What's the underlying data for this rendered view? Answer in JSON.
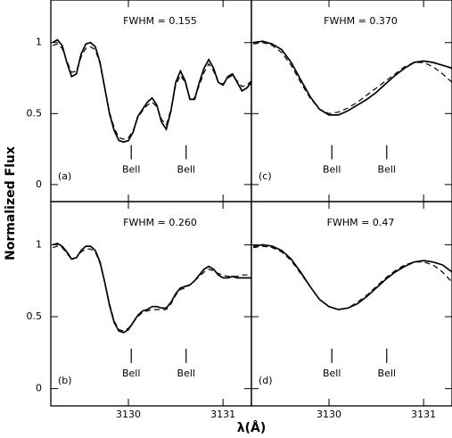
{
  "chart_data": [
    {
      "type": "line",
      "title": "FWHM = 0.155",
      "panel": "(a)",
      "x": [
        3129.2,
        3129.25,
        3129.3,
        3129.35,
        3129.4,
        3129.45,
        3129.5,
        3129.55,
        3129.6,
        3129.65,
        3129.7,
        3129.75,
        3129.8,
        3129.85,
        3129.9,
        3129.95,
        3130,
        3130.05,
        3130.1,
        3130.15,
        3130.2,
        3130.25,
        3130.3,
        3130.35,
        3130.4,
        3130.45,
        3130.5,
        3130.55,
        3130.6,
        3130.65,
        3130.7,
        3130.75,
        3130.8,
        3130.85,
        3130.9,
        3130.95,
        3131,
        3131.05,
        3131.1,
        3131.15,
        3131.2,
        3131.25,
        3131.3
      ],
      "series": [
        {
          "color": "#000000",
          "style": "solid",
          "values": [
            1.0,
            1.02,
            0.98,
            0.86,
            0.76,
            0.78,
            0.92,
            0.99,
            1.0,
            0.97,
            0.86,
            0.68,
            0.5,
            0.38,
            0.31,
            0.3,
            0.31,
            0.37,
            0.48,
            0.53,
            0.58,
            0.61,
            0.56,
            0.44,
            0.39,
            0.52,
            0.72,
            0.8,
            0.73,
            0.6,
            0.6,
            0.72,
            0.82,
            0.88,
            0.82,
            0.72,
            0.7,
            0.76,
            0.78,
            0.72,
            0.66,
            0.68,
            0.72
          ]
        },
        {
          "color": "#000000",
          "style": "dashed",
          "values": [
            0.98,
            0.99,
            0.96,
            0.87,
            0.79,
            0.8,
            0.9,
            0.96,
            0.97,
            0.95,
            0.85,
            0.68,
            0.51,
            0.4,
            0.33,
            0.32,
            0.33,
            0.38,
            0.47,
            0.52,
            0.56,
            0.58,
            0.55,
            0.46,
            0.42,
            0.53,
            0.7,
            0.77,
            0.72,
            0.61,
            0.61,
            0.7,
            0.79,
            0.85,
            0.8,
            0.72,
            0.71,
            0.75,
            0.77,
            0.73,
            0.69,
            0.7,
            0.73
          ]
        }
      ],
      "markers": [
        {
          "x": 3130.03,
          "label": "Bell"
        },
        {
          "x": 3130.61,
          "label": "Bell"
        }
      ],
      "xlim": [
        3129.18,
        3131.3
      ],
      "ylim": [
        -0.12,
        1.3
      ],
      "xticks": [
        3130,
        3131
      ],
      "yticks": [
        0,
        0.5,
        1
      ],
      "ylabel": "Normalized Flux"
    },
    {
      "type": "line",
      "title": "FWHM = 0.260",
      "panel": "(b)",
      "x": [
        3129.2,
        3129.25,
        3129.3,
        3129.35,
        3129.4,
        3129.45,
        3129.5,
        3129.55,
        3129.6,
        3129.65,
        3129.7,
        3129.75,
        3129.8,
        3129.85,
        3129.9,
        3129.95,
        3130,
        3130.05,
        3130.1,
        3130.15,
        3130.2,
        3130.25,
        3130.3,
        3130.35,
        3130.4,
        3130.45,
        3130.5,
        3130.55,
        3130.6,
        3130.65,
        3130.7,
        3130.75,
        3130.8,
        3130.85,
        3130.9,
        3130.95,
        3131,
        3131.05,
        3131.1,
        3131.15,
        3131.2,
        3131.25,
        3131.3
      ],
      "series": [
        {
          "color": "#000000",
          "style": "solid",
          "values": [
            1.0,
            1.01,
            0.99,
            0.95,
            0.9,
            0.91,
            0.96,
            0.99,
            0.99,
            0.96,
            0.88,
            0.74,
            0.58,
            0.46,
            0.4,
            0.39,
            0.41,
            0.46,
            0.51,
            0.54,
            0.55,
            0.57,
            0.57,
            0.56,
            0.56,
            0.6,
            0.66,
            0.7,
            0.71,
            0.72,
            0.75,
            0.79,
            0.83,
            0.85,
            0.83,
            0.79,
            0.77,
            0.77,
            0.78,
            0.77,
            0.77,
            0.77,
            0.77
          ]
        },
        {
          "color": "#000000",
          "style": "dashed",
          "values": [
            0.98,
            0.99,
            0.98,
            0.94,
            0.9,
            0.91,
            0.95,
            0.97,
            0.97,
            0.95,
            0.87,
            0.74,
            0.59,
            0.47,
            0.41,
            0.4,
            0.42,
            0.46,
            0.5,
            0.53,
            0.54,
            0.55,
            0.55,
            0.55,
            0.55,
            0.59,
            0.65,
            0.69,
            0.7,
            0.72,
            0.75,
            0.78,
            0.81,
            0.83,
            0.82,
            0.8,
            0.79,
            0.78,
            0.78,
            0.78,
            0.79,
            0.79,
            0.79
          ]
        }
      ],
      "markers": [
        {
          "x": 3130.03,
          "label": "Bell"
        },
        {
          "x": 3130.61,
          "label": "Bell"
        }
      ],
      "xlim": [
        3129.18,
        3131.3
      ],
      "ylim": [
        -0.12,
        1.3
      ],
      "xticks": [
        3130,
        3131
      ],
      "yticks": [
        0,
        0.5,
        1
      ],
      "xlabel": "λ(Å)"
    },
    {
      "type": "line",
      "title": "FWHM = 0.370",
      "panel": "(c)",
      "x": [
        3129.2,
        3129.3,
        3129.4,
        3129.5,
        3129.6,
        3129.7,
        3129.8,
        3129.9,
        3130,
        3130.1,
        3130.2,
        3130.3,
        3130.4,
        3130.5,
        3130.6,
        3130.7,
        3130.8,
        3130.9,
        3131,
        3131.1,
        3131.2,
        3131.3
      ],
      "series": [
        {
          "color": "#000000",
          "style": "solid",
          "values": [
            1.0,
            1.01,
            0.99,
            0.95,
            0.86,
            0.74,
            0.62,
            0.53,
            0.49,
            0.49,
            0.52,
            0.56,
            0.6,
            0.65,
            0.71,
            0.77,
            0.82,
            0.86,
            0.87,
            0.86,
            0.84,
            0.82
          ]
        },
        {
          "color": "#000000",
          "style": "dashed",
          "values": [
            0.99,
            1.0,
            0.98,
            0.93,
            0.84,
            0.72,
            0.61,
            0.53,
            0.5,
            0.51,
            0.54,
            0.58,
            0.63,
            0.68,
            0.73,
            0.78,
            0.83,
            0.86,
            0.86,
            0.83,
            0.78,
            0.72
          ]
        }
      ],
      "markers": [
        {
          "x": 3130.03,
          "label": "Bell"
        },
        {
          "x": 3130.61,
          "label": "Bell"
        }
      ],
      "xlim": [
        3129.18,
        3131.3
      ],
      "ylim": [
        -0.12,
        1.3
      ],
      "xticks": [
        3130,
        3131
      ],
      "yticks": [
        0,
        0.5,
        1
      ]
    },
    {
      "type": "line",
      "title": "FWHM = 0.47",
      "panel": "(d)",
      "x": [
        3129.2,
        3129.3,
        3129.4,
        3129.5,
        3129.6,
        3129.7,
        3129.8,
        3129.9,
        3130,
        3130.1,
        3130.2,
        3130.3,
        3130.4,
        3130.5,
        3130.6,
        3130.7,
        3130.8,
        3130.9,
        3131,
        3131.1,
        3131.2,
        3131.3
      ],
      "series": [
        {
          "color": "#000000",
          "style": "solid",
          "values": [
            0.99,
            1.0,
            0.99,
            0.96,
            0.9,
            0.81,
            0.71,
            0.62,
            0.57,
            0.55,
            0.56,
            0.59,
            0.64,
            0.7,
            0.76,
            0.81,
            0.85,
            0.88,
            0.89,
            0.88,
            0.86,
            0.81
          ]
        },
        {
          "color": "#000000",
          "style": "dashed",
          "values": [
            0.98,
            0.99,
            0.98,
            0.95,
            0.89,
            0.8,
            0.71,
            0.62,
            0.57,
            0.55,
            0.56,
            0.6,
            0.65,
            0.71,
            0.77,
            0.82,
            0.86,
            0.88,
            0.88,
            0.86,
            0.81,
            0.74
          ]
        }
      ],
      "markers": [
        {
          "x": 3130.03,
          "label": "Bell"
        },
        {
          "x": 3130.61,
          "label": "Bell"
        }
      ],
      "xlim": [
        3129.18,
        3131.3
      ],
      "ylim": [
        -0.12,
        1.3
      ],
      "xticks": [
        3130,
        3131
      ],
      "yticks": [
        0,
        0.5,
        1
      ],
      "xlabel": "λ(Å)"
    }
  ]
}
